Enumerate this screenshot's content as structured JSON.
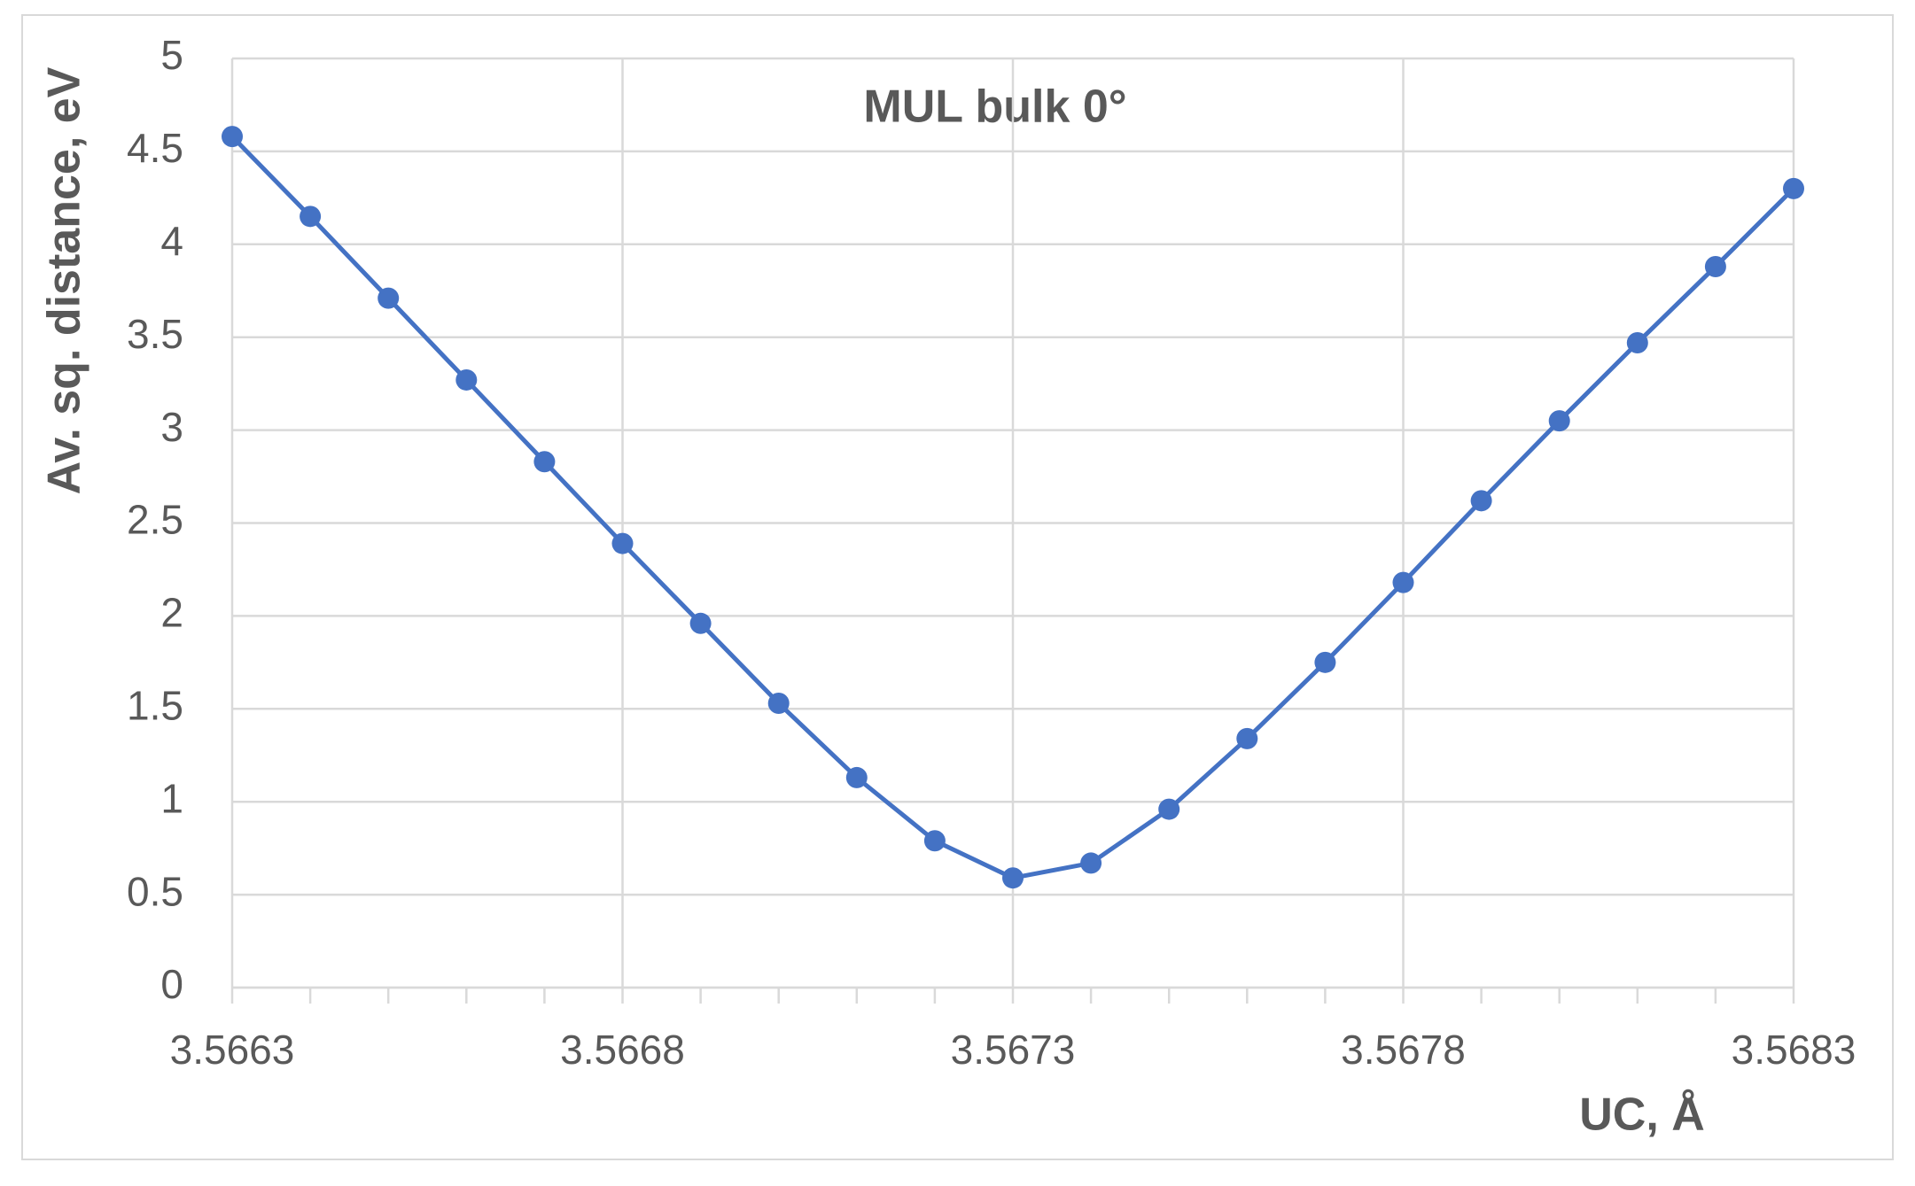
{
  "chart_data": {
    "type": "line",
    "title": "MUL bulk 0°",
    "x_label": "UC, Å",
    "y_label": "Av. sq. distance, eV",
    "x": [
      3.5663,
      3.5664,
      3.5665,
      3.5666,
      3.5667,
      3.5668,
      3.5669,
      3.567,
      3.5671,
      3.5672,
      3.5673,
      3.5674,
      3.5675,
      3.5676,
      3.5677,
      3.5678,
      3.5679,
      3.568,
      3.5681,
      3.5682,
      3.5683
    ],
    "series": [
      {
        "name": "MUL bulk 0°",
        "color": "#4472c4",
        "values": [
          4.58,
          4.15,
          3.71,
          3.27,
          2.83,
          2.39,
          1.96,
          1.53,
          1.13,
          0.79,
          0.59,
          0.67,
          0.96,
          1.34,
          1.75,
          2.18,
          2.62,
          3.05,
          3.47,
          3.88,
          4.3
        ]
      }
    ],
    "xlim": [
      3.5663,
      3.5683
    ],
    "xticks": [
      3.5663,
      3.5668,
      3.5673,
      3.5678,
      3.5683
    ],
    "xminorticks": [
      3.5664,
      3.5665,
      3.5666,
      3.5667,
      3.5669,
      3.567,
      3.5671,
      3.5672,
      3.5674,
      3.5675,
      3.5676,
      3.5677,
      3.5679,
      3.568,
      3.5681,
      3.5682
    ],
    "ylim": [
      0,
      5
    ],
    "yticks": [
      0,
      0.5,
      1,
      1.5,
      2,
      2.5,
      3,
      3.5,
      4,
      4.5,
      5
    ],
    "grid": true
  }
}
